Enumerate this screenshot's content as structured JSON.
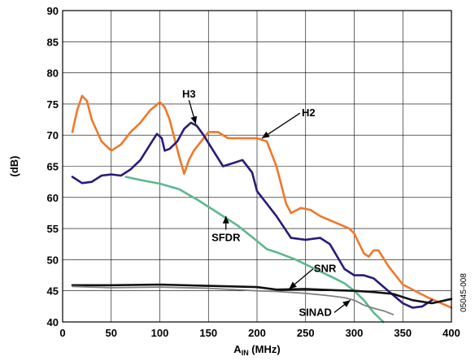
{
  "chart_data": {
    "type": "line",
    "xlabel_main": "A",
    "xlabel_sub": "IN",
    "xlabel_unit": " (MHz)",
    "ylabel": "(dB)",
    "xlim": [
      0,
      400
    ],
    "ylim": [
      40,
      90
    ],
    "xticks": [
      0,
      50,
      100,
      150,
      200,
      250,
      300,
      350,
      400
    ],
    "yticks": [
      40,
      45,
      50,
      55,
      60,
      65,
      70,
      75,
      80,
      85,
      90
    ],
    "grid": true,
    "figure_id": "05045-008",
    "series": [
      {
        "name": "H2",
        "color": "#f07828",
        "values": [
          [
            10,
            70.5
          ],
          [
            15,
            74
          ],
          [
            20,
            76.3
          ],
          [
            25,
            75.5
          ],
          [
            30,
            72.5
          ],
          [
            40,
            69
          ],
          [
            50,
            67.5
          ],
          [
            60,
            68.5
          ],
          [
            70,
            70.5
          ],
          [
            80,
            72
          ],
          [
            90,
            74
          ],
          [
            100,
            75.3
          ],
          [
            105,
            74.5
          ],
          [
            110,
            72.5
          ],
          [
            120,
            66.5
          ],
          [
            125,
            63.8
          ],
          [
            130,
            66
          ],
          [
            135,
            67.5
          ],
          [
            140,
            68.5
          ],
          [
            150,
            70.5
          ],
          [
            160,
            70.5
          ],
          [
            170,
            69.5
          ],
          [
            180,
            69.5
          ],
          [
            190,
            69.5
          ],
          [
            200,
            69.5
          ],
          [
            210,
            69
          ],
          [
            220,
            65
          ],
          [
            230,
            59
          ],
          [
            235,
            57.5
          ],
          [
            245,
            58.3
          ],
          [
            255,
            58
          ],
          [
            265,
            57
          ],
          [
            280,
            56
          ],
          [
            295,
            55
          ],
          [
            300,
            54.2
          ],
          [
            310,
            51
          ],
          [
            315,
            50.5
          ],
          [
            320,
            51.5
          ],
          [
            325,
            51.5
          ],
          [
            335,
            49
          ],
          [
            350,
            46
          ],
          [
            375,
            44
          ],
          [
            400,
            42.3
          ]
        ]
      },
      {
        "name": "H3",
        "color": "#2a1a7a",
        "values": [
          [
            10,
            63.3
          ],
          [
            20,
            62.3
          ],
          [
            30,
            62.5
          ],
          [
            40,
            63.5
          ],
          [
            50,
            63.7
          ],
          [
            60,
            63.5
          ],
          [
            70,
            64.5
          ],
          [
            80,
            66
          ],
          [
            90,
            68.5
          ],
          [
            97,
            70.2
          ],
          [
            102,
            69.5
          ],
          [
            105,
            67.5
          ],
          [
            110,
            67.8
          ],
          [
            118,
            69
          ],
          [
            125,
            71
          ],
          [
            132,
            72
          ],
          [
            138,
            71.5
          ],
          [
            145,
            70
          ],
          [
            155,
            67.5
          ],
          [
            165,
            65
          ],
          [
            175,
            65.5
          ],
          [
            185,
            66
          ],
          [
            195,
            64
          ],
          [
            200,
            61
          ],
          [
            210,
            59
          ],
          [
            220,
            57
          ],
          [
            235,
            53.5
          ],
          [
            250,
            53.2
          ],
          [
            265,
            53.5
          ],
          [
            275,
            52.5
          ],
          [
            290,
            48.5
          ],
          [
            300,
            47.5
          ],
          [
            310,
            47.5
          ],
          [
            320,
            47
          ],
          [
            335,
            45
          ],
          [
            350,
            43
          ],
          [
            360,
            42.3
          ],
          [
            370,
            42.5
          ],
          [
            380,
            43.5
          ]
        ]
      },
      {
        "name": "SFDR",
        "color": "#5cb88e",
        "values": [
          [
            65,
            63.3
          ],
          [
            80,
            62.8
          ],
          [
            100,
            62.2
          ],
          [
            120,
            61.3
          ],
          [
            140,
            59.5
          ],
          [
            160,
            57.5
          ],
          [
            180,
            55.5
          ],
          [
            200,
            53
          ],
          [
            210,
            51.7
          ],
          [
            220,
            51.2
          ],
          [
            240,
            50
          ],
          [
            260,
            48.5
          ],
          [
            280,
            47
          ],
          [
            290,
            46.2
          ],
          [
            300,
            45
          ],
          [
            310,
            43.5
          ],
          [
            320,
            41.5
          ],
          [
            330,
            40
          ]
        ]
      },
      {
        "name": "SNR",
        "color": "#111111",
        "values": [
          [
            10,
            45.9
          ],
          [
            50,
            45.9
          ],
          [
            100,
            46
          ],
          [
            150,
            45.8
          ],
          [
            200,
            45.6
          ],
          [
            220,
            45.2
          ],
          [
            250,
            45.3
          ],
          [
            280,
            45.1
          ],
          [
            300,
            45
          ],
          [
            320,
            44.8
          ],
          [
            340,
            44.5
          ],
          [
            360,
            43.5
          ],
          [
            380,
            43
          ],
          [
            400,
            43.7
          ]
        ]
      },
      {
        "name": "SINAD",
        "color": "#808080",
        "values": [
          [
            10,
            45.7
          ],
          [
            50,
            45.5
          ],
          [
            100,
            45.6
          ],
          [
            150,
            45.4
          ],
          [
            200,
            45
          ],
          [
            220,
            44.9
          ],
          [
            250,
            44.6
          ],
          [
            270,
            44.3
          ],
          [
            290,
            43.9
          ],
          [
            300,
            43.5
          ],
          [
            310,
            42.7
          ],
          [
            320,
            42.2
          ],
          [
            330,
            41.8
          ],
          [
            340,
            41.2
          ]
        ]
      }
    ],
    "annotations": [
      {
        "label": "H3",
        "x": 130,
        "y": 76,
        "arrow_to": [
          137,
          71.8
        ]
      },
      {
        "label": "H2",
        "x": 253,
        "y": 73,
        "arrow_to": [
          205,
          69.5
        ]
      },
      {
        "label": "SFDR",
        "x": 168,
        "y": 53,
        "arrow_to": [
          168,
          57
        ]
      },
      {
        "label": "SNR",
        "x": 270,
        "y": 48,
        "arrow_to": [
          233,
          45.3
        ]
      },
      {
        "label": "SINAD",
        "x": 260,
        "y": 41,
        "arrow_to": [
          296,
          43.5
        ]
      }
    ]
  }
}
